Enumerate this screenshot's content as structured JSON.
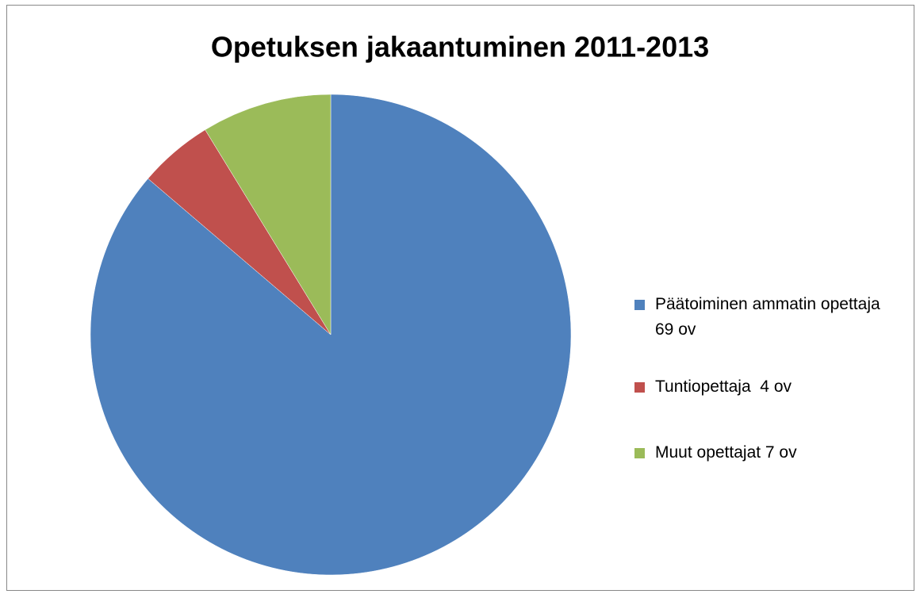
{
  "chart_data": {
    "type": "pie",
    "title": "Opetuksen jakaantuminen 2011-2013",
    "categories": [
      "Päätoiminen ammatin opettaja  69 ov",
      "Tuntiopettaja  4 ov",
      "Muut opettajat 7 ov"
    ],
    "values": [
      69,
      4,
      7
    ],
    "colors": [
      "#4f81bd",
      "#c0504d",
      "#9bbb59"
    ],
    "legend": "right"
  }
}
